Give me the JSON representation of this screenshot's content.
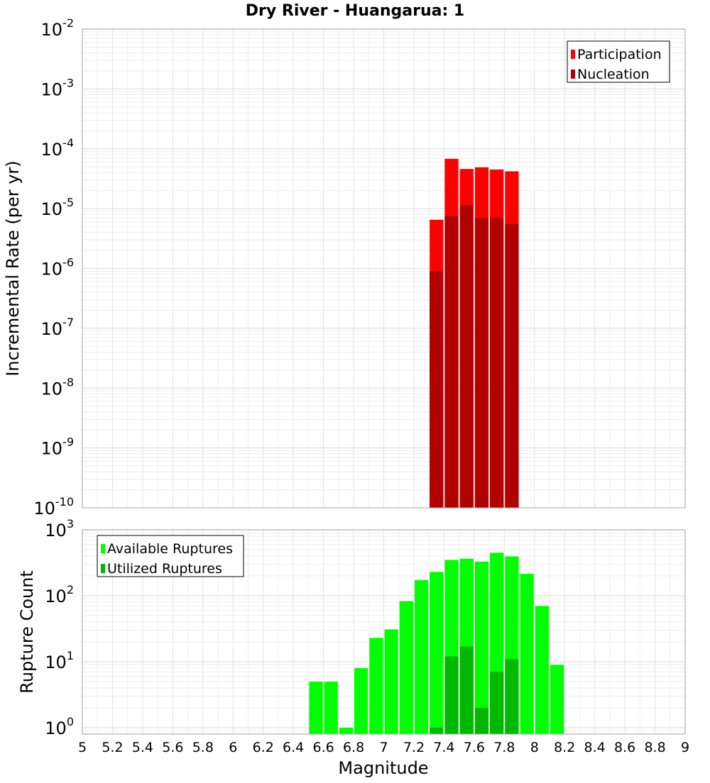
{
  "title": "Dry River - Huangarua: 1",
  "chart_data": [
    {
      "type": "bar",
      "title": "Dry River - Huangarua: 1",
      "xlabel": "Magnitude",
      "ylabel": "Incremental Rate (per yr)",
      "y_scale": "log",
      "ylim": [
        1e-10,
        0.01
      ],
      "xlim": [
        5,
        9
      ],
      "grid": true,
      "legend_position": "top-right",
      "y_ticks": [
        {
          "base": "10",
          "exp": "-10"
        },
        {
          "base": "10",
          "exp": "-9"
        },
        {
          "base": "10",
          "exp": "-8"
        },
        {
          "base": "10",
          "exp": "-7"
        },
        {
          "base": "10",
          "exp": "-6"
        },
        {
          "base": "10",
          "exp": "-5"
        },
        {
          "base": "10",
          "exp": "-4"
        },
        {
          "base": "10",
          "exp": "-3"
        },
        {
          "base": "10",
          "exp": "-2"
        }
      ],
      "series": [
        {
          "name": "Participation",
          "color": "#ff0000",
          "x": [
            7.35,
            7.45,
            7.55,
            7.65,
            7.75,
            7.85
          ],
          "values": [
            6.5e-06,
            6.8e-05,
            4.6e-05,
            4.9e-05,
            4.5e-05,
            4.2e-05
          ]
        },
        {
          "name": "Nucleation",
          "color": "#b20000",
          "x": [
            7.35,
            7.45,
            7.55,
            7.65,
            7.75,
            7.85
          ],
          "values": [
            9e-07,
            7.5e-06,
            1.15e-05,
            7e-06,
            7e-06,
            5.5e-06
          ]
        }
      ]
    },
    {
      "type": "bar",
      "xlabel": "Magnitude",
      "ylabel": "Rupture Count",
      "y_scale": "log",
      "ylim": [
        0.8,
        1000
      ],
      "xlim": [
        5,
        9
      ],
      "grid": true,
      "legend_position": "top-left",
      "x_ticks": [
        "5",
        "5.2",
        "5.4",
        "5.6",
        "5.8",
        "6",
        "6.2",
        "6.4",
        "6.6",
        "6.8",
        "7",
        "7.2",
        "7.4",
        "7.6",
        "7.8",
        "8",
        "8.2",
        "8.4",
        "8.6",
        "8.8",
        "9"
      ],
      "y_ticks": [
        {
          "base": "10",
          "exp": "0"
        },
        {
          "base": "10",
          "exp": "1"
        },
        {
          "base": "10",
          "exp": "2"
        },
        {
          "base": "10",
          "exp": "3"
        }
      ],
      "series": [
        {
          "name": "Available Ruptures",
          "color": "#00ff00",
          "x": [
            6.55,
            6.65,
            6.75,
            6.85,
            6.95,
            7.05,
            7.15,
            7.25,
            7.35,
            7.45,
            7.55,
            7.65,
            7.75,
            7.85,
            7.95,
            8.05,
            8.15
          ],
          "values": [
            5,
            5,
            1,
            8,
            23,
            31,
            83,
            173,
            230,
            350,
            365,
            330,
            450,
            395,
            215,
            70,
            9
          ]
        },
        {
          "name": "Utilized Ruptures",
          "color": "#00b800",
          "x": [
            7.35,
            7.45,
            7.55,
            7.65,
            7.75,
            7.85
          ],
          "values": [
            1,
            12,
            17,
            2,
            7,
            11
          ]
        }
      ]
    }
  ]
}
